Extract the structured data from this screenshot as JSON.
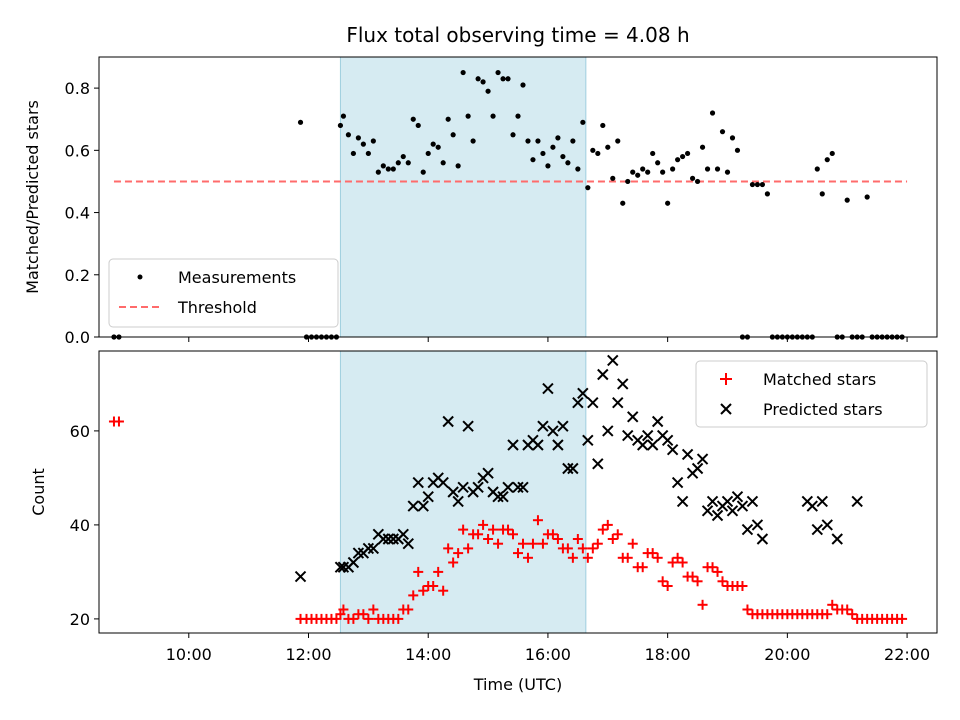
{
  "chart_data": [
    {
      "type": "scatter",
      "title": "Flux total observing time = 4.08 h",
      "xlabel": "",
      "ylabel": "Matched/Predicted stars",
      "xlim": [
        "08:30",
        "22:30"
      ],
      "ylim": [
        0,
        0.9
      ],
      "yticks": [
        0.0,
        0.2,
        0.4,
        0.6,
        0.8
      ],
      "ytick_labels": [
        "0.0",
        "0.2",
        "0.4",
        "0.6",
        "0.8"
      ],
      "shaded_interval": [
        "12:32",
        "16:38"
      ],
      "shade_color": "#add8e6",
      "legend": {
        "placement": "lower-left",
        "measurements_label": "Measurements",
        "threshold_label": "Threshold"
      },
      "threshold": {
        "value": 0.5,
        "x_range": [
          "08:45",
          "22:00"
        ],
        "color": "#ff6b6b"
      },
      "measurements": {
        "x": [
          "08:45",
          "08:50",
          "11:52",
          "11:58",
          "12:03",
          "12:08",
          "12:13",
          "12:18",
          "12:23",
          "12:28",
          "12:32",
          "12:35",
          "12:40",
          "12:45",
          "12:50",
          "12:55",
          "13:00",
          "13:05",
          "13:10",
          "13:15",
          "13:20",
          "13:25",
          "13:30",
          "13:35",
          "13:40",
          "13:45",
          "13:50",
          "13:55",
          "14:00",
          "14:05",
          "14:10",
          "14:15",
          "14:20",
          "14:25",
          "14:30",
          "14:35",
          "14:40",
          "14:45",
          "14:50",
          "14:55",
          "15:00",
          "15:05",
          "15:10",
          "15:15",
          "15:20",
          "15:25",
          "15:30",
          "15:35",
          "15:40",
          "15:45",
          "15:50",
          "15:55",
          "16:00",
          "16:05",
          "16:10",
          "16:15",
          "16:20",
          "16:25",
          "16:30",
          "16:35",
          "16:40",
          "16:45",
          "16:50",
          "16:55",
          "17:00",
          "17:05",
          "17:10",
          "17:15",
          "17:20",
          "17:25",
          "17:30",
          "17:35",
          "17:40",
          "17:45",
          "17:50",
          "17:55",
          "18:00",
          "18:05",
          "18:10",
          "18:15",
          "18:20",
          "18:25",
          "18:30",
          "18:35",
          "18:40",
          "18:45",
          "18:50",
          "18:55",
          "19:00",
          "19:05",
          "19:10",
          "19:15",
          "19:20",
          "19:25",
          "19:30",
          "19:35",
          "19:40",
          "19:45",
          "19:50",
          "19:55",
          "20:00",
          "20:05",
          "20:10",
          "20:15",
          "20:20",
          "20:25",
          "20:30",
          "20:35",
          "20:40",
          "20:45",
          "20:50",
          "20:55",
          "21:00",
          "21:05",
          "21:10",
          "21:15",
          "21:20",
          "21:25",
          "21:30",
          "21:35",
          "21:40",
          "21:45",
          "21:50",
          "21:55"
        ],
        "y": [
          0,
          0,
          0.69,
          0,
          0,
          0,
          0,
          0,
          0,
          0,
          0.68,
          0.71,
          0.65,
          0.59,
          0.64,
          0.62,
          0.59,
          0.63,
          0.53,
          0.55,
          0.54,
          0.54,
          0.56,
          0.58,
          0.56,
          0.7,
          0.68,
          0.53,
          0.59,
          0.62,
          0.61,
          0.56,
          0.7,
          0.65,
          0.55,
          0.85,
          0.71,
          0.63,
          0.83,
          0.82,
          0.79,
          0.71,
          0.85,
          0.83,
          0.83,
          0.65,
          0.71,
          0.81,
          0.63,
          0.57,
          0.63,
          0.59,
          0.55,
          0.61,
          0.64,
          0.58,
          0.56,
          0.63,
          0.54,
          0.69,
          0.48,
          0.6,
          0.59,
          0.68,
          0.61,
          0.51,
          0.63,
          0.43,
          0.5,
          0.53,
          0.52,
          0.54,
          0.53,
          0.59,
          0.56,
          0.53,
          0.43,
          0.54,
          0.57,
          0.58,
          0.59,
          0.51,
          0.5,
          0.61,
          0.54,
          0.72,
          0.54,
          0.66,
          0.53,
          0.64,
          0.6,
          0,
          0,
          0.49,
          0.49,
          0.49,
          0.46,
          0,
          0,
          0,
          0,
          0,
          0,
          0,
          0,
          0,
          0.54,
          0.46,
          0.57,
          0.59,
          0,
          0,
          0.44,
          0,
          0,
          0,
          0.45,
          0,
          0,
          0,
          0,
          0,
          0,
          0
        ]
      }
    },
    {
      "type": "scatter",
      "title": "",
      "xlabel": "Time (UTC)",
      "ylabel": "Count",
      "xlim": [
        "08:30",
        "22:30"
      ],
      "ylim": [
        17,
        77
      ],
      "xticks": [
        "10:00",
        "12:00",
        "14:00",
        "16:00",
        "18:00",
        "20:00",
        "22:00"
      ],
      "yticks": [
        20,
        40,
        60
      ],
      "ytick_labels": [
        "20",
        "40",
        "60"
      ],
      "shaded_interval": [
        "12:32",
        "16:38"
      ],
      "shade_color": "#add8e6",
      "legend": {
        "placement": "upper-right",
        "matched_label": "Matched stars",
        "predicted_label": "Predicted stars"
      },
      "matched": {
        "color": "#ff0000",
        "x": [
          "08:45",
          "08:50",
          "11:52",
          "11:58",
          "12:03",
          "12:08",
          "12:13",
          "12:18",
          "12:23",
          "12:28",
          "12:32",
          "12:35",
          "12:40",
          "12:45",
          "12:50",
          "12:55",
          "13:00",
          "13:05",
          "13:10",
          "13:15",
          "13:20",
          "13:25",
          "13:30",
          "13:35",
          "13:40",
          "13:45",
          "13:50",
          "13:55",
          "14:00",
          "14:05",
          "14:10",
          "14:15",
          "14:20",
          "14:25",
          "14:30",
          "14:35",
          "14:40",
          "14:45",
          "14:50",
          "14:55",
          "15:00",
          "15:05",
          "15:10",
          "15:15",
          "15:20",
          "15:25",
          "15:30",
          "15:35",
          "15:40",
          "15:45",
          "15:50",
          "15:55",
          "16:00",
          "16:05",
          "16:10",
          "16:15",
          "16:20",
          "16:25",
          "16:30",
          "16:35",
          "16:40",
          "16:45",
          "16:50",
          "16:55",
          "17:00",
          "17:05",
          "17:10",
          "17:15",
          "17:20",
          "17:25",
          "17:30",
          "17:35",
          "17:40",
          "17:45",
          "17:50",
          "17:55",
          "18:00",
          "18:05",
          "18:10",
          "18:15",
          "18:20",
          "18:25",
          "18:30",
          "18:35",
          "18:40",
          "18:45",
          "18:50",
          "18:55",
          "19:00",
          "19:05",
          "19:10",
          "19:15",
          "19:20",
          "19:25",
          "19:30",
          "19:35",
          "19:40",
          "19:45",
          "19:50",
          "19:55",
          "20:00",
          "20:05",
          "20:10",
          "20:15",
          "20:20",
          "20:25",
          "20:30",
          "20:35",
          "20:40",
          "20:45",
          "20:50",
          "20:55",
          "21:00",
          "21:05",
          "21:10",
          "21:15",
          "21:20",
          "21:25",
          "21:30",
          "21:35",
          "21:40",
          "21:45",
          "21:50",
          "21:55"
        ],
        "y": [
          62,
          62,
          20,
          20,
          20,
          20,
          20,
          20,
          20,
          20,
          21,
          22,
          20,
          20,
          21,
          21,
          20,
          22,
          20,
          20,
          20,
          20,
          20,
          22,
          22,
          25,
          30,
          26,
          27,
          27,
          30,
          26,
          35,
          32,
          34,
          39,
          35,
          38,
          38,
          40,
          37,
          39,
          36,
          39,
          39,
          38,
          34,
          36,
          33,
          36,
          41,
          36,
          38,
          38,
          37,
          35,
          35,
          33,
          37,
          35,
          33,
          35,
          36,
          39,
          40,
          37,
          38,
          33,
          33,
          36,
          31,
          31,
          34,
          34,
          33,
          28,
          27,
          32,
          33,
          32,
          29,
          29,
          28,
          23,
          31,
          31,
          30,
          28,
          27,
          27,
          27,
          27,
          22,
          21,
          21,
          21,
          21,
          21,
          21,
          21,
          21,
          21,
          21,
          21,
          21,
          21,
          21,
          21,
          21,
          23,
          22,
          22,
          22,
          21,
          20,
          20,
          20,
          20,
          20,
          20,
          20,
          20,
          20,
          20
        ]
      },
      "predicted": {
        "color": "#000000",
        "x": [
          "11:52",
          "12:32",
          "12:35",
          "12:40",
          "12:45",
          "12:50",
          "12:55",
          "13:00",
          "13:05",
          "13:10",
          "13:15",
          "13:20",
          "13:25",
          "13:30",
          "13:35",
          "13:40",
          "13:45",
          "13:50",
          "13:55",
          "14:00",
          "14:05",
          "14:10",
          "14:15",
          "14:20",
          "14:25",
          "14:30",
          "14:35",
          "14:40",
          "14:45",
          "14:50",
          "14:55",
          "15:00",
          "15:05",
          "15:10",
          "15:15",
          "15:20",
          "15:25",
          "15:30",
          "15:35",
          "15:40",
          "15:45",
          "15:50",
          "15:55",
          "16:00",
          "16:05",
          "16:10",
          "16:15",
          "16:20",
          "16:25",
          "16:30",
          "16:35",
          "16:40",
          "16:45",
          "16:50",
          "16:55",
          "17:00",
          "17:05",
          "17:10",
          "17:15",
          "17:20",
          "17:25",
          "17:30",
          "17:35",
          "17:40",
          "17:45",
          "17:50",
          "17:55",
          "18:00",
          "18:05",
          "18:10",
          "18:15",
          "18:20",
          "18:25",
          "18:30",
          "18:35",
          "18:40",
          "18:45",
          "18:50",
          "18:55",
          "19:00",
          "19:05",
          "19:10",
          "19:15",
          "19:20",
          "19:25",
          "19:30",
          "19:35",
          "20:20",
          "20:25",
          "20:30",
          "20:35",
          "20:40",
          "20:50",
          "21:10"
        ],
        "y": [
          29,
          31,
          31,
          31,
          32,
          34,
          34,
          35,
          35,
          38,
          37,
          37,
          37,
          37,
          38,
          36,
          44,
          49,
          44,
          46,
          49,
          50,
          49,
          62,
          47,
          45,
          48,
          61,
          47,
          48,
          50,
          51,
          47,
          46,
          46,
          48,
          57,
          48,
          48,
          57,
          58,
          57,
          61,
          69,
          60,
          57,
          61,
          52,
          52,
          66,
          68,
          58,
          66,
          53,
          72,
          60,
          75,
          66,
          70,
          59,
          63,
          58,
          57,
          59,
          57,
          62,
          59,
          58,
          56,
          49,
          45,
          55,
          51,
          52,
          54,
          43,
          45,
          42,
          44,
          45,
          43,
          46,
          44,
          39,
          45,
          40,
          37,
          45,
          44,
          39,
          45,
          40,
          37,
          45
        ]
      }
    }
  ]
}
